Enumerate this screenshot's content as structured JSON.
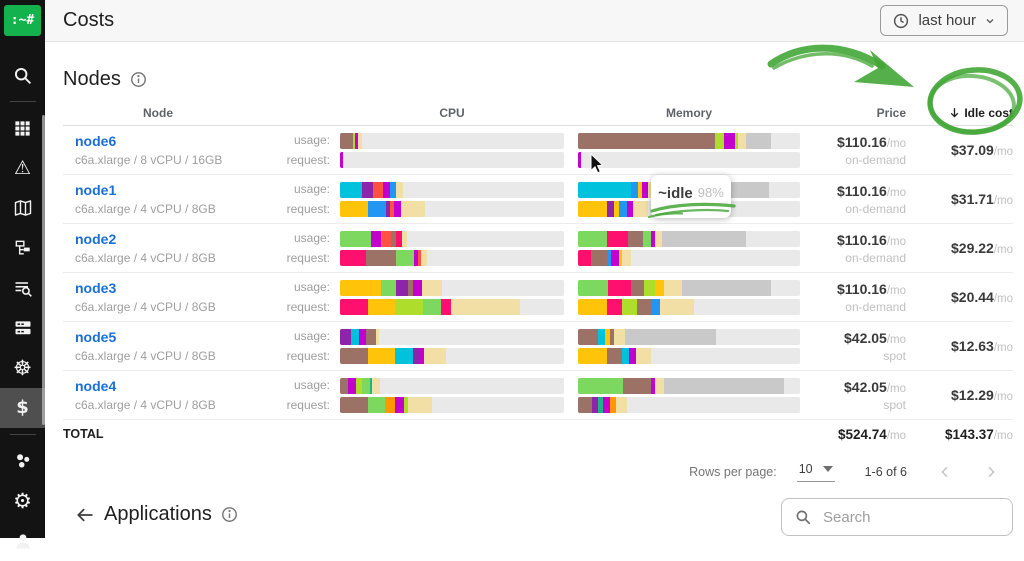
{
  "header": {
    "title": "Costs",
    "time_range": "last hour"
  },
  "sidebar": {
    "logo": ":~#",
    "glyphs": {
      "warning": "⚠",
      "helm": "☸",
      "gear": "⚙",
      "dollar": "$"
    },
    "items": [
      "search",
      "apps",
      "alerts",
      "map",
      "reports",
      "audit",
      "servers",
      "helm",
      "costs",
      "clusters",
      "settings",
      "profile"
    ],
    "active_item": "costs"
  },
  "nodes": {
    "title": "Nodes",
    "columns": {
      "node": "Node",
      "cpu": "CPU",
      "memory": "Memory",
      "price": "Price",
      "idle": "Idle cost"
    },
    "row_labels": {
      "usage": "usage:",
      "request": "request:"
    },
    "unit": "/mo",
    "rows": [
      {
        "name": "node6",
        "spec": "c6a.xlarge / 8 vCPU / 16GB",
        "price": "$110.16",
        "billing": "on-demand",
        "idle": "$37.09",
        "cpu_usage": [
          [
            "brown",
            5.8
          ],
          [
            "lime",
            0.9
          ],
          [
            "magenta",
            1.3
          ],
          [
            "tan",
            1.7
          ]
        ],
        "cpu_request": [
          [
            "magenta",
            1.2
          ]
        ],
        "mem_usage": [
          [
            "brown",
            61.5
          ],
          [
            "lime",
            4.4
          ],
          [
            "magenta",
            4.7
          ],
          [
            "lime",
            1.5
          ],
          [
            "tan",
            3.4
          ],
          [
            "darkgray",
            11.3
          ]
        ],
        "mem_request": [
          [
            "magenta",
            1.5
          ]
        ]
      },
      {
        "name": "node1",
        "spec": "c6a.xlarge / 4 vCPU / 8GB",
        "price": "$110.16",
        "billing": "on-demand",
        "idle": "$31.71",
        "cpu_usage": [
          [
            "cyan",
            10
          ],
          [
            "purple",
            4.8
          ],
          [
            "red",
            4.4
          ],
          [
            "magenta",
            3
          ],
          [
            "blue",
            2.7
          ],
          [
            "tan",
            3.2
          ]
        ],
        "cpu_request": [
          [
            "yellow",
            12.5
          ],
          [
            "blue",
            7.9
          ],
          [
            "purple",
            2
          ],
          [
            "red",
            1.8
          ],
          [
            "magenta",
            3.2
          ],
          [
            "tan",
            10.7
          ]
        ],
        "mem_usage": [
          [
            "cyan",
            24
          ],
          [
            "blue",
            3
          ],
          [
            "yellow",
            1.8
          ],
          [
            "magenta",
            2.8
          ],
          [
            "tan",
            4
          ],
          [
            "track",
            28.4
          ],
          [
            "darkgray",
            22
          ]
        ],
        "mem_request": [
          [
            "yellow",
            13
          ],
          [
            "purple",
            3
          ],
          [
            "yellow",
            2.5
          ],
          [
            "blue",
            3.5
          ],
          [
            "magenta",
            3
          ],
          [
            "tan",
            6.5
          ]
        ]
      },
      {
        "name": "node2",
        "spec": "c6a.xlarge / 4 vCPU / 8GB",
        "price": "$110.16",
        "billing": "on-demand",
        "idle": "$29.22",
        "cpu_usage": [
          [
            "green",
            13.8
          ],
          [
            "magenta",
            4.5
          ],
          [
            "red",
            4.5
          ],
          [
            "brown",
            2.2
          ],
          [
            "pink",
            2.9
          ],
          [
            "tan",
            2
          ]
        ],
        "cpu_request": [
          [
            "pink",
            11.6
          ],
          [
            "brown",
            13.4
          ],
          [
            "green",
            8
          ],
          [
            "magenta",
            1.8
          ],
          [
            "red",
            1.3
          ],
          [
            "tan",
            2.8
          ]
        ],
        "mem_usage": [
          [
            "green",
            13
          ],
          [
            "pink",
            9.7
          ],
          [
            "brown",
            6.7
          ],
          [
            "green",
            3.4
          ],
          [
            "magenta",
            1.8
          ],
          [
            "tan",
            3.3
          ],
          [
            "darkgray",
            38
          ]
        ],
        "mem_request": [
          [
            "pink",
            6
          ],
          [
            "brown",
            7
          ],
          [
            "blue",
            2
          ],
          [
            "magenta",
            3.5
          ],
          [
            "yellow",
            1.2
          ],
          [
            "tan",
            4
          ]
        ]
      },
      {
        "name": "node3",
        "spec": "c6a.xlarge / 4 vCPU / 8GB",
        "price": "$110.16",
        "billing": "on-demand",
        "idle": "$20.44",
        "cpu_usage": [
          [
            "yellow",
            18.5
          ],
          [
            "green",
            6.7
          ],
          [
            "purple",
            5.2
          ],
          [
            "brown",
            2.2
          ],
          [
            "magenta",
            4.2
          ],
          [
            "tan",
            8.9
          ]
        ],
        "cpu_request": [
          [
            "pink",
            12.5
          ],
          [
            "yellow",
            11.9
          ],
          [
            "lime",
            12.6
          ],
          [
            "green",
            8.2
          ],
          [
            "pink",
            4.5
          ],
          [
            "tan",
            30.5
          ]
        ],
        "mem_usage": [
          [
            "green",
            13.7
          ],
          [
            "pink",
            10.4
          ],
          [
            "brown",
            5.7
          ],
          [
            "lime",
            4.8
          ],
          [
            "yellow",
            4.2
          ],
          [
            "tan",
            8
          ],
          [
            "darkgray",
            40
          ]
        ],
        "mem_request": [
          [
            "yellow",
            13
          ],
          [
            "pink",
            6.7
          ],
          [
            "lime",
            6.7
          ],
          [
            "brown",
            7
          ],
          [
            "blue",
            3.4
          ],
          [
            "tan",
            15.6
          ]
        ]
      },
      {
        "name": "node5",
        "spec": "c6a.xlarge / 4 vCPU / 8GB",
        "price": "$42.05",
        "billing": "spot",
        "idle": "$12.63",
        "cpu_usage": [
          [
            "purple",
            5
          ],
          [
            "cyan",
            3.7
          ],
          [
            "magenta",
            2.7
          ],
          [
            "brown",
            4.5
          ],
          [
            "tan",
            1.5
          ]
        ],
        "cpu_request": [
          [
            "brown",
            12.5
          ],
          [
            "yellow",
            11.9
          ],
          [
            "cyan",
            8.2
          ],
          [
            "purple",
            2.7
          ],
          [
            "magenta",
            2
          ],
          [
            "tan",
            10
          ]
        ],
        "mem_usage": [
          [
            "brown",
            9.2
          ],
          [
            "cyan",
            3
          ],
          [
            "yellow",
            2.2
          ],
          [
            "brown",
            2
          ],
          [
            "tan",
            5
          ],
          [
            "darkgray",
            40.6
          ]
        ],
        "mem_request": [
          [
            "yellow",
            13
          ],
          [
            "brown",
            6.7
          ],
          [
            "cyan",
            3.3
          ],
          [
            "magenta",
            3
          ],
          [
            "tan",
            6.8
          ]
        ]
      },
      {
        "name": "node4",
        "spec": "c6a.xlarge / 4 vCPU / 8GB",
        "price": "$42.05",
        "billing": "spot",
        "idle": "$12.29",
        "cpu_usage": [
          [
            "brown",
            3.6
          ],
          [
            "magenta",
            3.7
          ],
          [
            "lime",
            2.7
          ],
          [
            "green",
            3.3
          ],
          [
            "teal",
            1.2
          ],
          [
            "tan",
            3.2
          ]
        ],
        "cpu_request": [
          [
            "brown",
            12.5
          ],
          [
            "green",
            7.4
          ],
          [
            "orange",
            4.5
          ],
          [
            "magenta",
            4.4
          ],
          [
            "lime",
            1.5
          ],
          [
            "tan",
            11
          ]
        ],
        "mem_usage": [
          [
            "green",
            20.4
          ],
          [
            "brown",
            12.4
          ],
          [
            "magenta",
            1.8
          ],
          [
            "tan",
            4.2
          ],
          [
            "darkgray",
            54
          ]
        ],
        "mem_request": [
          [
            "brown",
            6.3
          ],
          [
            "purple",
            2.7
          ],
          [
            "teal",
            2.1
          ],
          [
            "magenta",
            3.4
          ],
          [
            "orange",
            2.5
          ],
          [
            "tan",
            5
          ]
        ]
      }
    ],
    "total": {
      "label": "TOTAL",
      "price": "$524.74",
      "idle": "$143.37"
    },
    "pagination": {
      "rows_per_page_label": "Rows per page:",
      "rows_per_page": "10",
      "range": "1-6 of 6"
    }
  },
  "applications": {
    "title": "Applications"
  },
  "search": {
    "placeholder": "Search"
  },
  "tooltip": {
    "label": "~idle",
    "value": "98%"
  },
  "palette": {
    "brown": "#9b7265",
    "green": "#7cd85f",
    "lime": "#afdd2b",
    "magenta": "#c400ce",
    "purple": "#8e24aa",
    "pink": "#ff0f6e",
    "red": "#ff5242",
    "orange": "#ff9800",
    "yellow": "#ffc40a",
    "tan": "#f2dfa5",
    "cyan": "#00c2dc",
    "blue": "#2196f3",
    "teal": "#1db588",
    "darkgray": "#c9c9c9",
    "track": "#e9e9e9"
  },
  "annotation": {
    "marker_color": "#43a636",
    "logo_color": "#14b24c"
  }
}
